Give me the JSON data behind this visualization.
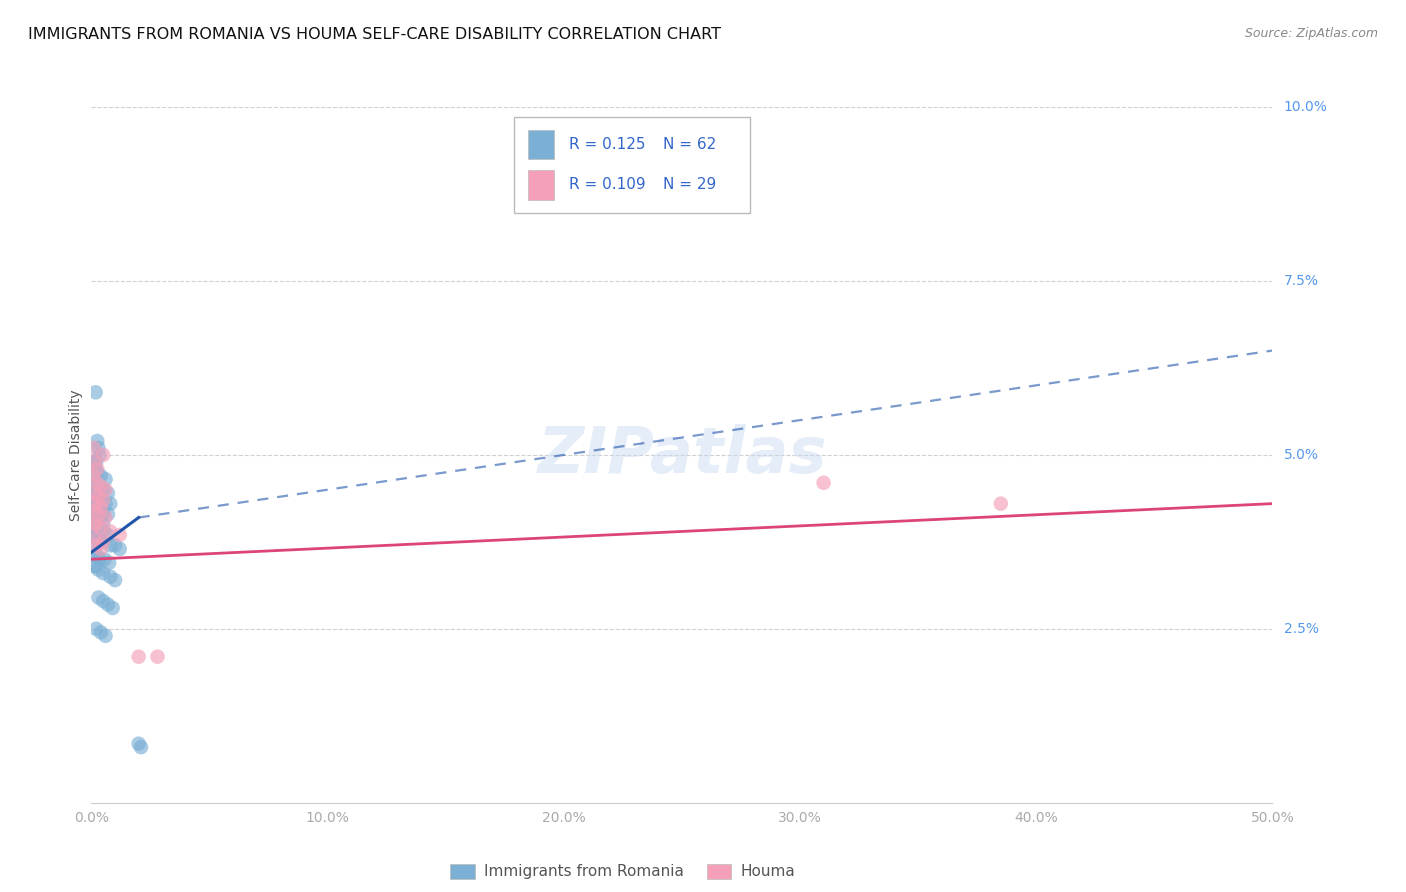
{
  "title": "IMMIGRANTS FROM ROMANIA VS HOUMA SELF-CARE DISABILITY CORRELATION CHART",
  "source": "Source: ZipAtlas.com",
  "ylabel": "Self-Care Disability",
  "xlim": [
    0,
    0.5
  ],
  "ylim": [
    0,
    0.1
  ],
  "xticks": [
    0.0,
    0.1,
    0.2,
    0.3,
    0.4,
    0.5
  ],
  "xticklabels": [
    "0.0%",
    "10.0%",
    "20.0%",
    "30.0%",
    "40.0%",
    "50.0%"
  ],
  "right_yticks": [
    0.025,
    0.05,
    0.075,
    0.1
  ],
  "right_yticklabels": [
    "2.5%",
    "5.0%",
    "7.5%",
    "10.0%"
  ],
  "background_color": "#ffffff",
  "grid_color": "#d0d0d0",
  "legend_R1": "0.125",
  "legend_N1": "62",
  "legend_R2": "0.109",
  "legend_N2": "29",
  "blue_color": "#7bafd4",
  "pink_color": "#f4a0b8",
  "blue_line_color": "#2255aa",
  "pink_line_color": "#dd4477",
  "blue_scatter": [
    [
      0.0018,
      0.059
    ],
    [
      0.0025,
      0.052
    ],
    [
      0.003,
      0.051
    ],
    [
      0.0035,
      0.05
    ],
    [
      0.001,
      0.049
    ],
    [
      0.002,
      0.049
    ],
    [
      0.0015,
      0.048
    ],
    [
      0.0025,
      0.0475
    ],
    [
      0.004,
      0.047
    ],
    [
      0.006,
      0.0465
    ],
    [
      0.001,
      0.046
    ],
    [
      0.002,
      0.0455
    ],
    [
      0.003,
      0.045
    ],
    [
      0.005,
      0.045
    ],
    [
      0.007,
      0.0445
    ],
    [
      0.001,
      0.044
    ],
    [
      0.0015,
      0.044
    ],
    [
      0.0025,
      0.0435
    ],
    [
      0.004,
      0.0435
    ],
    [
      0.006,
      0.043
    ],
    [
      0.008,
      0.043
    ],
    [
      0.001,
      0.0425
    ],
    [
      0.002,
      0.042
    ],
    [
      0.003,
      0.042
    ],
    [
      0.005,
      0.0415
    ],
    [
      0.007,
      0.0415
    ],
    [
      0.001,
      0.041
    ],
    [
      0.002,
      0.041
    ],
    [
      0.003,
      0.0405
    ],
    [
      0.005,
      0.04
    ],
    [
      0.001,
      0.0395
    ],
    [
      0.002,
      0.0395
    ],
    [
      0.003,
      0.039
    ],
    [
      0.005,
      0.039
    ],
    [
      0.007,
      0.0385
    ],
    [
      0.001,
      0.038
    ],
    [
      0.002,
      0.038
    ],
    [
      0.003,
      0.0375
    ],
    [
      0.005,
      0.0375
    ],
    [
      0.008,
      0.037
    ],
    [
      0.01,
      0.037
    ],
    [
      0.012,
      0.0365
    ],
    [
      0.0015,
      0.036
    ],
    [
      0.0025,
      0.0355
    ],
    [
      0.0035,
      0.035
    ],
    [
      0.0055,
      0.035
    ],
    [
      0.0075,
      0.0345
    ],
    [
      0.001,
      0.034
    ],
    [
      0.002,
      0.034
    ],
    [
      0.003,
      0.0335
    ],
    [
      0.005,
      0.033
    ],
    [
      0.008,
      0.0325
    ],
    [
      0.01,
      0.032
    ],
    [
      0.003,
      0.0295
    ],
    [
      0.005,
      0.029
    ],
    [
      0.007,
      0.0285
    ],
    [
      0.009,
      0.028
    ],
    [
      0.002,
      0.025
    ],
    [
      0.004,
      0.0245
    ],
    [
      0.006,
      0.024
    ],
    [
      0.02,
      0.0085
    ],
    [
      0.021,
      0.008
    ]
  ],
  "pink_scatter": [
    [
      0.001,
      0.051
    ],
    [
      0.0015,
      0.049
    ],
    [
      0.0025,
      0.048
    ],
    [
      0.005,
      0.05
    ],
    [
      0.001,
      0.047
    ],
    [
      0.002,
      0.046
    ],
    [
      0.004,
      0.0455
    ],
    [
      0.006,
      0.045
    ],
    [
      0.001,
      0.0445
    ],
    [
      0.003,
      0.044
    ],
    [
      0.005,
      0.0435
    ],
    [
      0.002,
      0.043
    ],
    [
      0.004,
      0.0425
    ],
    [
      0.001,
      0.042
    ],
    [
      0.003,
      0.0415
    ],
    [
      0.006,
      0.041
    ],
    [
      0.001,
      0.04
    ],
    [
      0.002,
      0.04
    ],
    [
      0.004,
      0.0395
    ],
    [
      0.008,
      0.039
    ],
    [
      0.012,
      0.0385
    ],
    [
      0.002,
      0.038
    ],
    [
      0.005,
      0.0375
    ],
    [
      0.002,
      0.037
    ],
    [
      0.004,
      0.0365
    ],
    [
      0.02,
      0.021
    ],
    [
      0.028,
      0.021
    ],
    [
      0.31,
      0.046
    ],
    [
      0.385,
      0.043
    ]
  ],
  "blue_solid_line": {
    "x0": 0.0,
    "y0": 0.036,
    "x1": 0.02,
    "y1": 0.041
  },
  "blue_dashed_line": {
    "x0": 0.02,
    "y0": 0.041,
    "x1": 0.5,
    "y1": 0.065
  },
  "pink_line": {
    "x0": 0.0,
    "y0": 0.035,
    "x1": 0.5,
    "y1": 0.043
  }
}
